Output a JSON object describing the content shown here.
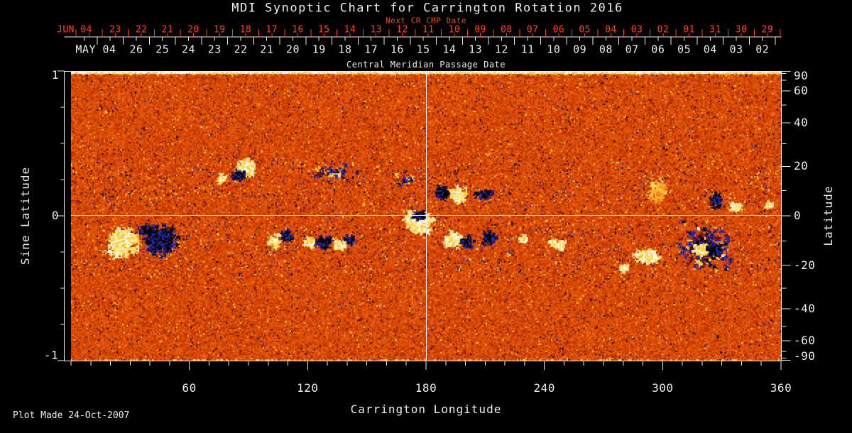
{
  "title": "MDI Synoptic Chart for Carrington Rotation 2016",
  "plot_made": "Plot Made 24-Oct-2007",
  "colors": {
    "accent_red": "#ff4513",
    "axis_white": "#ededed",
    "background": "#000000"
  },
  "chart_data": {
    "type": "heatmap",
    "title": "MDI Synoptic Chart for Carrington Rotation 2016",
    "top_red_axis": {
      "title": "Next CR CMP Date",
      "month_label": "JUN 04",
      "day_labels": [
        "23",
        "22",
        "21",
        "20",
        "19",
        "18",
        "17",
        "16",
        "15",
        "14",
        "13",
        "12",
        "11",
        "10",
        "09",
        "08",
        "07",
        "06",
        "05",
        "04",
        "03",
        "02",
        "01",
        "31",
        "30",
        "29"
      ]
    },
    "cmp_axis": {
      "title": "Central Meridian Passage Date",
      "month_label": "MAY 04",
      "day_labels": [
        "26",
        "25",
        "24",
        "23",
        "22",
        "21",
        "20",
        "19",
        "18",
        "17",
        "16",
        "15",
        "14",
        "13",
        "12",
        "11",
        "10",
        "09",
        "08",
        "07",
        "06",
        "05",
        "04",
        "03",
        "02"
      ]
    },
    "x_axis": {
      "label": "Carrington Longitude",
      "range": [
        0,
        360
      ],
      "tick_labels": [
        "60",
        "120",
        "180",
        "240",
        "300",
        "360"
      ],
      "major_tick_step_deg": 60,
      "minor_tick_step_deg": 10
    },
    "left_axis": {
      "label": "Sine Latitude",
      "range": [
        -1,
        1
      ],
      "tick_labels": [
        "1",
        "0",
        "-1"
      ],
      "minor_tick_step": 0.25
    },
    "right_axis": {
      "label": "Latitude",
      "tick_labels": [
        "90",
        "60",
        "40",
        "20",
        "0",
        "-20",
        "-40",
        "-60",
        "-90"
      ],
      "minor_tick_step_deg": 10
    },
    "reference_lines": {
      "longitude_deg": 180,
      "sine_latitude": 0
    },
    "palette": {
      "positive_strong": "#ffffff",
      "positive": "#fbdb57",
      "background_orange": "#e9630f",
      "background_red": "#bf3400",
      "negative": "#2a28aa",
      "negative_strong": "#070707",
      "pole_band": "#ffffff"
    },
    "background_texture": "speckled orange-red solar magnetogram noise with yellow, dark-red, blue and black speckles",
    "active_regions": [
      {
        "lon": 26,
        "sin_lat": -0.18,
        "rx": 24,
        "ry": 22,
        "pol": 1,
        "d": 2.0
      },
      {
        "lon": 45,
        "sin_lat": -0.16,
        "rx": 26,
        "ry": 23,
        "pol": -1,
        "d": 2.2
      },
      {
        "lon": 37,
        "sin_lat": -0.09,
        "rx": 10,
        "ry": 7,
        "pol": -1,
        "d": 1.2
      },
      {
        "lon": 103,
        "sin_lat": -0.17,
        "rx": 10,
        "ry": 9,
        "pol": 1,
        "d": 1.8
      },
      {
        "lon": 109,
        "sin_lat": -0.14,
        "rx": 10,
        "ry": 9,
        "pol": -1,
        "d": 1.6
      },
      {
        "lon": 121,
        "sin_lat": -0.18,
        "rx": 8,
        "ry": 8,
        "pol": 1,
        "d": 1.6
      },
      {
        "lon": 128,
        "sin_lat": -0.18,
        "rx": 11,
        "ry": 10,
        "pol": -1,
        "d": 1.4
      },
      {
        "lon": 136,
        "sin_lat": -0.2,
        "rx": 9,
        "ry": 8,
        "pol": 1,
        "d": 1.4
      },
      {
        "lon": 141,
        "sin_lat": -0.16,
        "rx": 8,
        "ry": 8,
        "pol": -1,
        "d": 1.4
      },
      {
        "lon": 176,
        "sin_lat": -0.04,
        "rx": 22,
        "ry": 16,
        "pol": 1,
        "d": 2.2
      },
      {
        "lon": 176,
        "sin_lat": 0.0,
        "rx": 10,
        "ry": 8,
        "pol": -1,
        "d": 2.0
      },
      {
        "lon": 193,
        "sin_lat": -0.16,
        "rx": 13,
        "ry": 12,
        "pol": 1,
        "d": 1.8
      },
      {
        "lon": 200,
        "sin_lat": -0.18,
        "rx": 10,
        "ry": 9,
        "pol": -1,
        "d": 1.6
      },
      {
        "lon": 212,
        "sin_lat": -0.15,
        "rx": 11,
        "ry": 11,
        "pol": -1,
        "d": 1.3
      },
      {
        "lon": 229,
        "sin_lat": -0.16,
        "rx": 6,
        "ry": 5,
        "pol": 1,
        "d": 1.5
      },
      {
        "lon": 247,
        "sin_lat": -0.19,
        "rx": 13,
        "ry": 9,
        "pol": 1,
        "d": 1.0
      },
      {
        "lon": 292,
        "sin_lat": -0.28,
        "rx": 20,
        "ry": 13,
        "pol": 1,
        "d": 1.5
      },
      {
        "lon": 280,
        "sin_lat": -0.36,
        "rx": 9,
        "ry": 6,
        "pol": 1,
        "d": 1.5
      },
      {
        "lon": 322,
        "sin_lat": -0.22,
        "rx": 40,
        "ry": 36,
        "pol": 0,
        "d": 0.55
      },
      {
        "lon": 319,
        "sin_lat": -0.23,
        "rx": 11,
        "ry": 9,
        "pol": 1,
        "d": 2.0
      },
      {
        "lon": 326,
        "sin_lat": -0.22,
        "rx": 12,
        "ry": 10,
        "pol": -1,
        "d": 1.8
      },
      {
        "lon": 89,
        "sin_lat": 0.34,
        "rx": 14,
        "ry": 14,
        "pol": 1,
        "d": 2.0
      },
      {
        "lon": 85,
        "sin_lat": 0.28,
        "rx": 11,
        "ry": 7,
        "pol": -1,
        "d": 2.0
      },
      {
        "lon": 76,
        "sin_lat": 0.26,
        "rx": 8,
        "ry": 6,
        "pol": 1,
        "d": 1.2
      },
      {
        "lon": 133,
        "sin_lat": 0.3,
        "rx": 40,
        "ry": 12,
        "pol": 0,
        "d": 0.35
      },
      {
        "lon": 169,
        "sin_lat": 0.26,
        "rx": 16,
        "ry": 12,
        "pol": 0,
        "d": 0.35
      },
      {
        "lon": 188,
        "sin_lat": 0.16,
        "rx": 12,
        "ry": 12,
        "pol": -1,
        "d": 1.7
      },
      {
        "lon": 196,
        "sin_lat": 0.15,
        "rx": 14,
        "ry": 12,
        "pol": 1,
        "d": 1.7
      },
      {
        "lon": 209,
        "sin_lat": 0.15,
        "rx": 16,
        "ry": 8,
        "pol": -1,
        "d": 0.8
      },
      {
        "lon": 298,
        "sin_lat": 0.17,
        "rx": 14,
        "ry": 20,
        "pol": 2,
        "d": 0.8
      },
      {
        "lon": 327,
        "sin_lat": 0.11,
        "rx": 9,
        "ry": 12,
        "pol": -1,
        "d": 1.5
      },
      {
        "lon": 337,
        "sin_lat": 0.06,
        "rx": 10,
        "ry": 8,
        "pol": 1,
        "d": 1.5
      },
      {
        "lon": 353,
        "sin_lat": 0.08,
        "rx": 7,
        "ry": 6,
        "pol": 1,
        "d": 1.2
      }
    ]
  }
}
